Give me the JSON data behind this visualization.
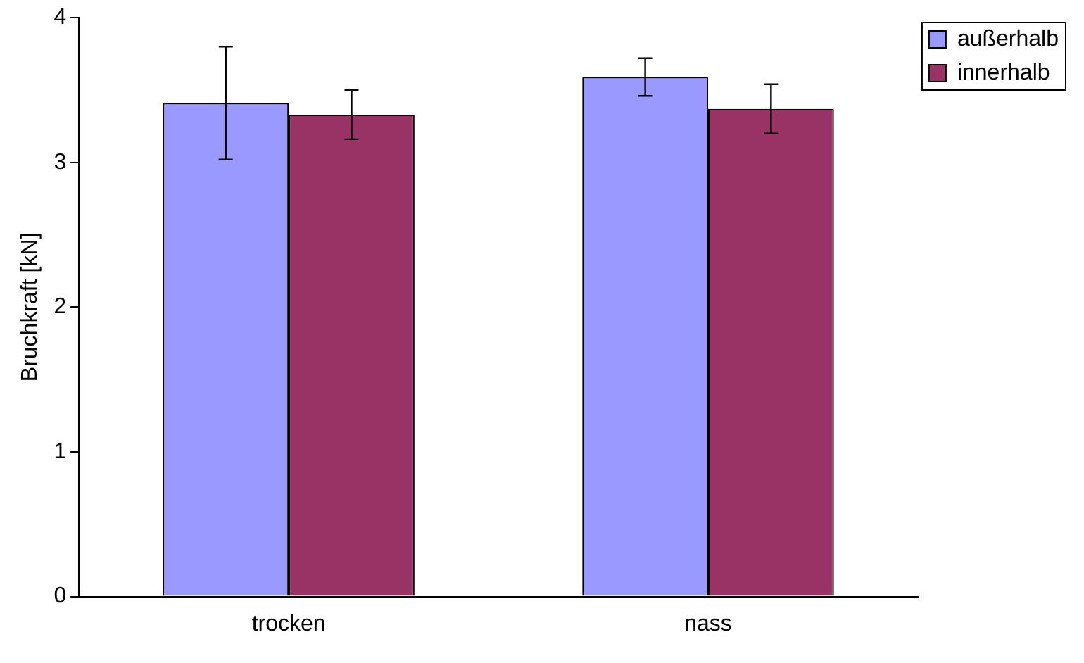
{
  "chart_data": {
    "type": "bar",
    "ylabel": "Bruchkraft [kN]",
    "categories": [
      "trocken",
      "nass"
    ],
    "series": [
      {
        "name": "außerhalb",
        "color": "#9999ff",
        "values": [
          3.41,
          3.59
        ],
        "errors": [
          0.39,
          0.13
        ]
      },
      {
        "name": "innerhalb",
        "color": "#993366",
        "values": [
          3.33,
          3.37
        ],
        "errors": [
          0.17,
          0.17
        ]
      }
    ],
    "ylim": [
      0,
      4
    ],
    "yticks": [
      0,
      1,
      2,
      3,
      4
    ],
    "grid": false,
    "legend": "right"
  }
}
